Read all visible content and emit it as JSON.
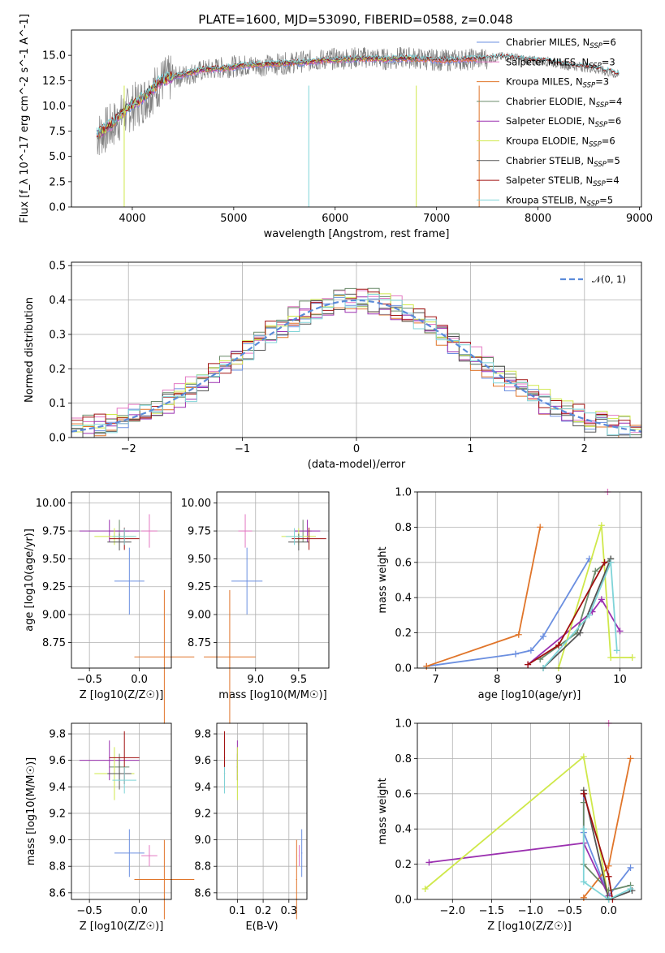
{
  "title": "PLATE=1600, MJD=53090, FIBERID=0588, z=0.048",
  "colors": {
    "Chabrier MILES": "#6b8fe0",
    "Salpeter MILES": "#e377c2",
    "Kroupa MILES": "#e0752a",
    "Chabrier ELODIE": "#6a8a6a",
    "Salpeter ELODIE": "#9b30b0",
    "Kroupa ELODIE": "#cfe84a",
    "Chabrier STELIB": "#555555",
    "Salpeter STELIB": "#a01010",
    "Kroupa STELIB": "#7fd4d8"
  },
  "chart_data": [
    {
      "id": "spectrum",
      "type": "line",
      "title": "PLATE=1600, MJD=53090, FIBERID=0588, z=0.048",
      "xlabel": "wavelength [Angstrom, rest frame]",
      "ylabel": "Flux [f_λ 10^-17 erg cm^-2 s^-1 A^-1]",
      "xlim": [
        3400,
        9020
      ],
      "ylim": [
        0,
        17.5
      ],
      "xticks": [
        "4000",
        "5000",
        "6000",
        "7000",
        "8000",
        "9000"
      ],
      "yticks": [
        "0.0",
        "2.5",
        "5.0",
        "7.5",
        "10.0",
        "12.5",
        "15.0"
      ],
      "x": [
        3650,
        3800,
        3950,
        4100,
        4300,
        4500,
        4700,
        4900,
        5100,
        5300,
        5500,
        5700,
        5900,
        6100,
        6300,
        6500,
        6700,
        6900,
        7100,
        7300,
        7500,
        7700,
        7900,
        8100,
        8300,
        8500,
        8700,
        8800
      ],
      "observed": [
        7.0,
        8.0,
        9.5,
        10.5,
        12.5,
        13.0,
        13.5,
        13.8,
        14.0,
        14.0,
        14.2,
        14.4,
        14.6,
        14.7,
        14.8,
        14.6,
        14.8,
        14.6,
        14.5,
        14.6,
        14.7,
        14.9,
        14.5,
        14.4,
        14.0,
        13.8,
        13.3,
        13.0
      ],
      "model": [
        7.2,
        8.2,
        9.8,
        10.8,
        12.6,
        13.1,
        13.6,
        13.7,
        14.0,
        14.1,
        14.2,
        14.3,
        14.5,
        14.6,
        14.7,
        14.6,
        14.7,
        14.6,
        14.5,
        14.6,
        14.7,
        14.8,
        14.5,
        14.4,
        14.0,
        13.8,
        13.4,
        13.1
      ],
      "legend": [
        {
          "label": "Chabrier MILES, N",
          "sub": "SSP",
          "tail": "=6",
          "color": "#6b8fe0"
        },
        {
          "label": "Salpeter MILES, N",
          "sub": "SSP",
          "tail": "=3",
          "color": "#e377c2"
        },
        {
          "label": "Kroupa MILES, N",
          "sub": "SSP",
          "tail": "=3",
          "color": "#e0752a"
        },
        {
          "label": "Chabrier ELODIE, N",
          "sub": "SSP",
          "tail": "=4",
          "color": "#6a8a6a"
        },
        {
          "label": "Salpeter ELODIE, N",
          "sub": "SSP",
          "tail": "=6",
          "color": "#9b30b0"
        },
        {
          "label": "Kroupa ELODIE, N",
          "sub": "SSP",
          "tail": "=6",
          "color": "#cfe84a"
        },
        {
          "label": "Chabrier STELIB, N",
          "sub": "SSP",
          "tail": "=5",
          "color": "#555555"
        },
        {
          "label": "Salpeter STELIB, N",
          "sub": "SSP",
          "tail": "=4",
          "color": "#a01010"
        },
        {
          "label": "Kroupa STELIB, N",
          "sub": "SSP",
          "tail": "=5",
          "color": "#7fd4d8"
        }
      ]
    },
    {
      "id": "residuals",
      "type": "area",
      "xlabel": "(data-model)/error",
      "ylabel": "Normed distribution",
      "xlim": [
        -2.5,
        2.5
      ],
      "ylim": [
        0,
        0.51
      ],
      "xticks": [
        "−2",
        "−1",
        "0",
        "1",
        "2"
      ],
      "yticks": [
        "0.0",
        "0.1",
        "0.2",
        "0.3",
        "0.4",
        "0.5"
      ],
      "legend_label": "𝒩(0, 1)",
      "reference": "normal(0,1)"
    },
    {
      "id": "age-vs-Z",
      "type": "scatter",
      "xlabel": "Z [log10(Z/Z☉)]",
      "ylabel": "age [log10(age/yr)]",
      "xlim": [
        -0.68,
        0.32
      ],
      "ylim": [
        8.52,
        10.1
      ],
      "xticks": [
        "−0.5",
        "0.0"
      ],
      "yticks": [
        "8.75",
        "9.00",
        "9.25",
        "9.50",
        "9.75",
        "10.00"
      ]
    },
    {
      "id": "age-vs-mass",
      "type": "scatter",
      "xlabel": "mass [log10(M/M☉)]",
      "ylabel": "",
      "xlim": [
        8.55,
        9.85
      ],
      "ylim": [
        8.52,
        10.1
      ],
      "xticks": [
        "9.0",
        "9.5"
      ],
      "yticks": [
        "8.75",
        "9.00",
        "9.25",
        "9.50",
        "9.75",
        "10.00"
      ]
    },
    {
      "id": "weight-vs-age",
      "type": "line",
      "xlabel": "age [log10(age/yr)]",
      "ylabel": "mass weight",
      "xlim": [
        6.7,
        10.35
      ],
      "ylim": [
        0,
        1.0
      ],
      "xticks": [
        "7",
        "8",
        "9",
        "10"
      ],
      "yticks": [
        "0.0",
        "0.2",
        "0.4",
        "0.6",
        "0.8",
        "1.0"
      ]
    },
    {
      "id": "mass-vs-Z",
      "type": "scatter",
      "xlabel": "Z [log10(Z/Z☉)]",
      "ylabel": "mass [log10(M/M☉)]",
      "xlim": [
        -0.68,
        0.32
      ],
      "ylim": [
        8.55,
        9.88
      ],
      "xticks": [
        "−0.5",
        "0.0"
      ],
      "yticks": [
        "8.6",
        "8.8",
        "9.0",
        "9.2",
        "9.4",
        "9.6",
        "9.8"
      ]
    },
    {
      "id": "mass-vs-EBV",
      "type": "scatter",
      "xlabel": "E(B-V)",
      "ylabel": "",
      "xlim": [
        0.02,
        0.37
      ],
      "ylim": [
        8.55,
        9.88
      ],
      "xticks": [
        "0.1",
        "0.2",
        "0.3"
      ],
      "yticks": [
        "8.6",
        "8.8",
        "9.0",
        "9.2",
        "9.4",
        "9.6",
        "9.8"
      ]
    },
    {
      "id": "weight-vs-Z",
      "type": "line",
      "xlabel": "Z [log10(Z/Z☉)]",
      "ylabel": "mass weight",
      "xlim": [
        -2.45,
        0.42
      ],
      "ylim": [
        0,
        1.0
      ],
      "xticks": [
        "−2.0",
        "−1.5",
        "−1.0",
        "−0.5",
        "0.0"
      ],
      "yticks": [
        "0.0",
        "0.2",
        "0.4",
        "0.6",
        "0.8",
        "1.0"
      ]
    }
  ],
  "series": [
    {
      "name": "Chabrier MILES",
      "color": "#6b8fe0",
      "Z": -0.1,
      "age": 9.3,
      "mass": 8.9,
      "ebv": 0.35,
      "Zerr": 0.15,
      "ageerr": 0.6,
      "masserr": 0.18,
      "ages": [
        6.85,
        8.3,
        8.55,
        8.75,
        9.5
      ],
      "wA": [
        0.01,
        0.08,
        0.1,
        0.18,
        0.62
      ],
      "Zs": [
        -0.32,
        -0.32,
        0.0,
        0.28
      ],
      "wZ": [
        0.6,
        0.38,
        0.02,
        0.18
      ]
    },
    {
      "name": "Salpeter MILES",
      "color": "#e377c2",
      "Z": 0.1,
      "age": 9.75,
      "mass": 8.88,
      "ebv": 0.34,
      "Zerr": 0.08,
      "ageerr": 0.3,
      "masserr": 0.08,
      "ages": [
        9.8
      ],
      "wA": [
        1.0
      ],
      "Zs": [
        0.0
      ],
      "wZ": [
        1.0
      ]
    },
    {
      "name": "Kroupa MILES",
      "color": "#e0752a",
      "Z": 0.25,
      "age": 8.62,
      "mass": 8.7,
      "ebv": 0.33,
      "Zerr": 0.3,
      "ageerr": 1.2,
      "masserr": 0.3,
      "ages": [
        6.85,
        8.35,
        8.7
      ],
      "wA": [
        0.01,
        0.19,
        0.8
      ],
      "Zs": [
        -0.32,
        0.0,
        0.28
      ],
      "wZ": [
        0.01,
        0.19,
        0.8
      ]
    },
    {
      "name": "Chabrier ELODIE",
      "color": "#6a8a6a",
      "Z": -0.2,
      "age": 9.75,
      "mass": 9.55,
      "ebv": 0.1,
      "Zerr": 0.1,
      "ageerr": 0.2,
      "masserr": 0.1,
      "ages": [
        8.7,
        9.3,
        9.6,
        9.85
      ],
      "wA": [
        0.05,
        0.2,
        0.55,
        0.62
      ],
      "Zs": [
        -0.32,
        -0.32,
        0.0,
        0.28
      ],
      "wZ": [
        0.55,
        0.2,
        0.05,
        0.08
      ]
    },
    {
      "name": "Salpeter ELODIE",
      "color": "#9b30b0",
      "Z": -0.3,
      "age": 9.75,
      "mass": 9.6,
      "ebv": 0.1,
      "Zerr": 0.3,
      "ageerr": 0.2,
      "masserr": 0.15,
      "ages": [
        8.5,
        9.55,
        9.7,
        10.0
      ],
      "wA": [
        0.02,
        0.32,
        0.39,
        0.21
      ],
      "Zs": [
        -2.3,
        -0.32,
        0.0
      ],
      "wZ": [
        0.21,
        0.32,
        0.02
      ]
    },
    {
      "name": "Kroupa ELODIE",
      "color": "#cfe84a",
      "Z": -0.25,
      "age": 9.7,
      "mass": 9.5,
      "ebv": 0.1,
      "Zerr": 0.2,
      "ageerr": 0.15,
      "masserr": 0.2,
      "ages": [
        9.0,
        9.7,
        9.85,
        10.2
      ],
      "wA": [
        0.0,
        0.81,
        0.06,
        0.06
      ],
      "Zs": [
        -2.35,
        -0.32,
        0.0
      ],
      "wZ": [
        0.06,
        0.81,
        0.0
      ]
    },
    {
      "name": "Chabrier STELIB",
      "color": "#555555",
      "Z": -0.2,
      "age": 9.65,
      "mass": 9.5,
      "ebv": 0.05,
      "Zerr": 0.12,
      "ageerr": 0.15,
      "masserr": 0.12,
      "ages": [
        8.75,
        9.35,
        9.85
      ],
      "wA": [
        0.0,
        0.2,
        0.62
      ],
      "Zs": [
        -0.32,
        0.0,
        0.3
      ],
      "wZ": [
        0.62,
        0.0,
        0.05
      ]
    },
    {
      "name": "Salpeter STELIB",
      "color": "#a01010",
      "Z": -0.15,
      "age": 9.68,
      "mass": 9.62,
      "ebv": 0.05,
      "Zerr": 0.15,
      "ageerr": 0.2,
      "masserr": 0.2,
      "ages": [
        8.5,
        9.0,
        9.75,
        9.85
      ],
      "wA": [
        0.02,
        0.13,
        0.6,
        0.6
      ],
      "Zs": [
        -0.32,
        0.0,
        0.05
      ],
      "wZ": [
        0.6,
        0.13,
        0.0
      ]
    },
    {
      "name": "Kroupa STELIB",
      "color": "#7fd4d8",
      "Z": -0.15,
      "age": 9.7,
      "mass": 9.45,
      "ebv": 0.05,
      "Zerr": 0.12,
      "ageerr": 0.15,
      "masserr": 0.1,
      "ages": [
        8.75,
        9.5,
        9.85,
        9.95
      ],
      "wA": [
        0.0,
        0.3,
        0.6,
        0.1
      ],
      "Zs": [
        -0.32,
        -0.32,
        0.0,
        0.28
      ],
      "wZ": [
        0.4,
        0.1,
        0.0,
        0.06
      ]
    }
  ]
}
